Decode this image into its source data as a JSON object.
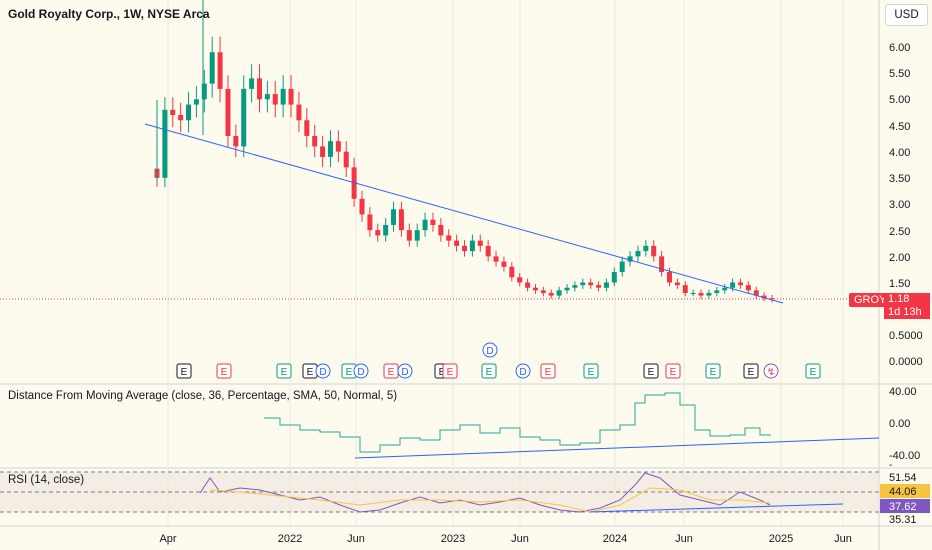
{
  "header": {
    "title": "Gold Royalty Corp., 1W, NYSE Arca",
    "currency": "USD"
  },
  "colors": {
    "background": "#fdfaee",
    "up": "#089981",
    "down": "#f23645",
    "trendline": "#2962ff",
    "indicator1": "#26a69a",
    "rsi": "#7e57c2",
    "rsi_ma": "#f5c542"
  },
  "chart_data": [
    {
      "type": "candlestick",
      "symbol": "GROY",
      "title": "Gold Royalty Corp., 1W, NYSE Arca",
      "y_ticks": [
        "6.00",
        "5.50",
        "5.00",
        "4.50",
        "4.00",
        "3.50",
        "3.00",
        "2.50",
        "2.00",
        "1.50",
        "0.5000",
        "0.0000"
      ],
      "x_ticks": [
        "Apr",
        "2022",
        "Jun",
        "2023",
        "Jun",
        "2024",
        "Jun",
        "2025",
        "Jun"
      ],
      "ylim": [
        0,
        6.6
      ],
      "last_price": "1.18",
      "countdown": "1d 13h",
      "close_series": [
        3.5,
        4.8,
        4.7,
        4.6,
        4.9,
        5.0,
        5.3,
        5.9,
        5.2,
        4.3,
        4.1,
        5.2,
        5.4,
        5.0,
        5.1,
        4.9,
        5.2,
        4.9,
        4.6,
        4.3,
        4.1,
        3.9,
        4.2,
        4.0,
        3.7,
        3.1,
        2.8,
        2.5,
        2.4,
        2.6,
        2.9,
        2.5,
        2.3,
        2.5,
        2.7,
        2.6,
        2.4,
        2.3,
        2.2,
        2.1,
        2.3,
        2.2,
        2.0,
        1.9,
        1.8,
        1.6,
        1.5,
        1.4,
        1.35,
        1.3,
        1.25,
        1.35,
        1.4,
        1.45,
        1.5,
        1.45,
        1.4,
        1.5,
        1.7,
        1.9,
        2.0,
        2.1,
        2.2,
        2.0,
        1.7,
        1.5,
        1.45,
        1.3,
        1.3,
        1.25,
        1.3,
        1.35,
        1.4,
        1.5,
        1.45,
        1.35,
        1.25,
        1.2,
        1.18
      ],
      "event_markers": [
        "E",
        "E",
        "E",
        "E",
        "D",
        "E",
        "D",
        "E",
        "D",
        "E",
        "E",
        "E",
        "D",
        "E",
        "D",
        "E",
        "E",
        "E",
        "E",
        "E",
        "E",
        "E",
        "E"
      ],
      "trendline": "descending"
    },
    {
      "type": "line",
      "title": "Distance From Moving Average (close, 36, Percentage, SMA, 50, Normal, 5)",
      "y_ticks": [
        "40.00",
        "0.00",
        "-40.00"
      ],
      "ylim": [
        -45,
        50
      ]
    },
    {
      "type": "line",
      "title": "RSI (14, close)",
      "series_labels": [
        "37.62",
        "44.06"
      ],
      "levels": [
        "51.54",
        "35.31"
      ],
      "y_ticks": [
        "-",
        "51.54",
        "44.06",
        "37.62",
        "35.31"
      ]
    }
  ]
}
